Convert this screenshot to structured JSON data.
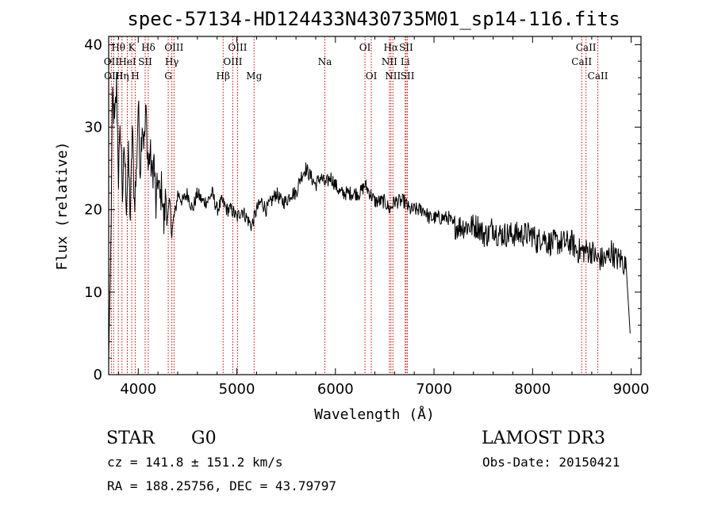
{
  "chart_data": {
    "type": "line",
    "title": "spec-57134-HD124433N430735M01_sp14-116.fits",
    "xlabel": "Wavelength (Å)",
    "ylabel": "Flux (relative)",
    "xlim": [
      3700,
      9100
    ],
    "ylim": [
      0,
      41
    ],
    "xticks": [
      4000,
      5000,
      6000,
      7000,
      8000,
      9000
    ],
    "yticks": [
      0,
      10,
      20,
      30,
      40
    ],
    "grid": false,
    "line_color": "#000000",
    "marker_color": "#cc0000",
    "spectral_lines": [
      {
        "name": "OII",
        "x": 3727,
        "row": 1
      },
      {
        "name": "Hθ",
        "x": 3798,
        "row": 0
      },
      {
        "name": "OIII",
        "x": 3750,
        "row": 2
      },
      {
        "name": "Hη",
        "x": 3835,
        "row": 2
      },
      {
        "name": "HeI",
        "x": 3889,
        "row": 1
      },
      {
        "name": "K",
        "x": 3934,
        "row": 0
      },
      {
        "name": "H",
        "x": 3969,
        "row": 2
      },
      {
        "name": "SII",
        "x": 4070,
        "row": 1
      },
      {
        "name": "Hδ",
        "x": 4102,
        "row": 0
      },
      {
        "name": "G",
        "x": 4304,
        "row": 2
      },
      {
        "name": "Hγ",
        "x": 4341,
        "row": 1
      },
      {
        "name": "OIII",
        "x": 4363,
        "row": 0
      },
      {
        "name": "Hβ",
        "x": 4861,
        "row": 2
      },
      {
        "name": "OIII",
        "x": 4959,
        "row": 1
      },
      {
        "name": "OIII",
        "x": 5007,
        "row": 0
      },
      {
        "name": "Mg",
        "x": 5175,
        "row": 2
      },
      {
        "name": "Na",
        "x": 5893,
        "row": 1
      },
      {
        "name": "OI",
        "x": 6300,
        "row": 0
      },
      {
        "name": "OI",
        "x": 6364,
        "row": 2
      },
      {
        "name": "NII",
        "x": 6548,
        "row": 1
      },
      {
        "name": "Hα",
        "x": 6563,
        "row": 0
      },
      {
        "name": "NII",
        "x": 6583,
        "row": 2
      },
      {
        "name": "Li",
        "x": 6708,
        "row": 1
      },
      {
        "name": "SII",
        "x": 6717,
        "row": 0
      },
      {
        "name": "SII",
        "x": 6731,
        "row": 2
      },
      {
        "name": "CaII",
        "x": 8498,
        "row": 1
      },
      {
        "name": "CaII",
        "x": 8542,
        "row": 0
      },
      {
        "name": "CaII",
        "x": 8662,
        "row": 2
      }
    ],
    "series": [
      {
        "x": [
          3700,
          3720,
          3740,
          3760,
          3780,
          3800,
          3820,
          3840,
          3860,
          3880,
          3900,
          3920,
          3940,
          3960,
          3980,
          4000,
          4020,
          4040,
          4060,
          4080,
          4100,
          4120,
          4140,
          4160,
          4180,
          4200,
          4220,
          4240,
          4260,
          4280,
          4300,
          4320,
          4340,
          4360,
          4380,
          4400,
          4450,
          4500,
          4550,
          4600,
          4650,
          4700,
          4750,
          4800,
          4850,
          4900,
          4950,
          5000,
          5050,
          5100,
          5150,
          5200,
          5250,
          5300,
          5350,
          5400,
          5450,
          5500,
          5550,
          5600,
          5650,
          5700,
          5750,
          5800,
          5850,
          5900,
          5950,
          6000,
          6050,
          6100,
          6150,
          6200,
          6250,
          6300,
          6350,
          6400,
          6450,
          6500,
          6550,
          6600,
          6650,
          6700,
          6750,
          6800,
          6850,
          6900,
          6950,
          7000,
          7050,
          7100,
          7150,
          7200,
          7250,
          7300,
          7350,
          7400,
          7450,
          7500,
          7550,
          7600,
          7650,
          7700,
          7750,
          7800,
          7850,
          7900,
          7950,
          8000,
          8050,
          8100,
          8150,
          8200,
          8250,
          8300,
          8350,
          8400,
          8450,
          8500,
          8550,
          8600,
          8650,
          8700,
          8750,
          8800,
          8850,
          8900,
          8950,
          8990
        ],
        "y": [
          2,
          14,
          34,
          30,
          35,
          24,
          30,
          22,
          27,
          21,
          26,
          19,
          30,
          21,
          24,
          33,
          25,
          31,
          28,
          32,
          25,
          27,
          24,
          26,
          20,
          24,
          21,
          23,
          18,
          22,
          19,
          21,
          17,
          19,
          20,
          22,
          21,
          22,
          20,
          22,
          21,
          21,
          22,
          20,
          21,
          20,
          20,
          19,
          20,
          19,
          18,
          20,
          21,
          20,
          21,
          22,
          21,
          21,
          22,
          22,
          24,
          25,
          24,
          23,
          24,
          23,
          24,
          23,
          22,
          22,
          22,
          22,
          22,
          23,
          22,
          21,
          21,
          21,
          20,
          21,
          21,
          21,
          20,
          20,
          20,
          20,
          19,
          19,
          19,
          19,
          19,
          18,
          18,
          18,
          18,
          18,
          18,
          17,
          17,
          18,
          17,
          17,
          17,
          17,
          17,
          17,
          17,
          17,
          16,
          17,
          16,
          16,
          16,
          16,
          16,
          16,
          15,
          15,
          15,
          15,
          14,
          14,
          14,
          15,
          14,
          14,
          13,
          5
        ]
      }
    ]
  },
  "info": {
    "object_class": "STAR",
    "subclass": "G0",
    "survey": "LAMOST DR3",
    "cz": "cz = 141.8 ± 151.2 km/s",
    "obs_date": "Obs-Date: 20150421",
    "coords": "RA = 188.25756, DEC =  43.79797"
  }
}
